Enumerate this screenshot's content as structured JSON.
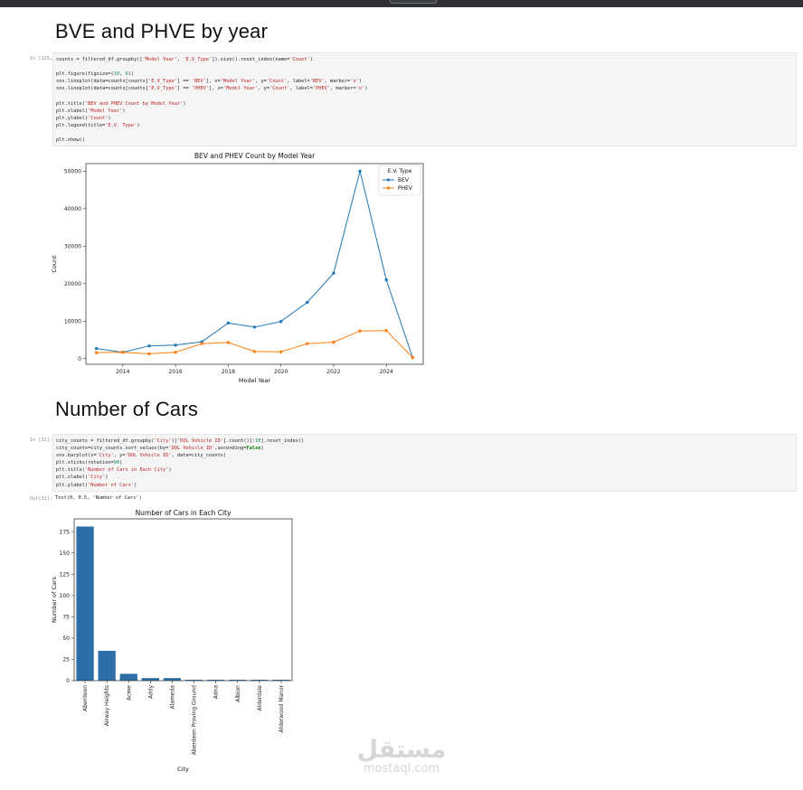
{
  "heading1": "BVE and PHVE by year",
  "heading2": "Number of Cars",
  "cell1": {
    "prompt": "In [125…",
    "lines": [
      "counts = filtered_df.groupby(['Model Year', 'E.V_Type']).size().reset_index(name='Count')",
      "",
      "plt.figure(figsize=(10, 6))",
      "sns.lineplot(data=counts[counts['E.V_Type'] == 'BEV'], x='Model Year', y='Count', label='BEV', marker='o')",
      "sns.lineplot(data=counts[counts['E.V_Type'] == 'PHEV'], x='Model Year', y='Count', label='PHEV', marker='o')",
      "",
      "plt.title('BEV and PHEV Count by Model Year')",
      "plt.xlabel('Model Year')",
      "plt.ylabel('Count')",
      "plt.legend(title='E.V. Type')",
      "",
      "plt.show()"
    ]
  },
  "cell2": {
    "prompt": "In [31]:",
    "lines": [
      "city_counts = filtered_df.groupby('City')['DOL Vehicle ID'].count()[:10].reset_index()",
      "city_counts=city_counts.sort_values(by='DOL Vehicle ID',ascending=False)",
      "sns.barplot(x='City', y='DOL Vehicle ID', data=city_counts)",
      "plt.xticks(rotation=90)",
      "plt.title('Number of Cars in Each City')",
      "plt.xlabel('City')",
      "plt.ylabel('Number of Cars')"
    ]
  },
  "out2": {
    "prompt": "Out[31]:",
    "text": "Text(0, 0.5, 'Number of Cars')"
  },
  "watermark": {
    "arabic": "مستقل",
    "latin": "mostaql.com"
  },
  "chart_data": [
    {
      "type": "line",
      "title": "BEV and PHEV Count by Model Year",
      "xlabel": "Model Year",
      "ylabel": "Count",
      "xlim": [
        2012.6,
        2025.4
      ],
      "ylim": [
        -1500,
        52000
      ],
      "xticks": [
        2014,
        2016,
        2018,
        2020,
        2022,
        2024
      ],
      "yticks": [
        0,
        10000,
        20000,
        30000,
        40000,
        50000
      ],
      "legend": {
        "title": "E.V. Type",
        "placement": "top-right"
      },
      "series": [
        {
          "name": "BEV",
          "color": "#1f77b4",
          "x": [
            2013,
            2014,
            2015,
            2016,
            2017,
            2018,
            2019,
            2020,
            2021,
            2022,
            2023,
            2024,
            2025
          ],
          "values": [
            2700,
            1700,
            3400,
            3600,
            4500,
            9500,
            8400,
            9900,
            15000,
            22800,
            50000,
            21000,
            300
          ]
        },
        {
          "name": "PHEV",
          "color": "#ff7f0e",
          "x": [
            2013,
            2014,
            2015,
            2016,
            2017,
            2018,
            2019,
            2020,
            2021,
            2022,
            2023,
            2024,
            2025
          ],
          "values": [
            1600,
            1700,
            1300,
            1700,
            4000,
            4300,
            1900,
            1800,
            4000,
            4400,
            7400,
            7500,
            300
          ]
        }
      ]
    },
    {
      "type": "bar",
      "title": "Number of Cars in Each City",
      "xlabel": "City",
      "ylabel": "Number of Cars",
      "ylim": [
        0,
        190
      ],
      "yticks": [
        0,
        25,
        50,
        75,
        100,
        125,
        150,
        175
      ],
      "color": "#2c6fa8",
      "categories": [
        "Aberdeen",
        "Airway Heights",
        "Acme",
        "Addy",
        "Alameda",
        "Aberdeen Proving Ground",
        "Adna",
        "Albion",
        "Alderdale",
        "Alderwood Manor"
      ],
      "values": [
        181,
        35,
        8,
        3,
        3,
        1,
        1,
        1,
        1,
        1
      ]
    }
  ]
}
